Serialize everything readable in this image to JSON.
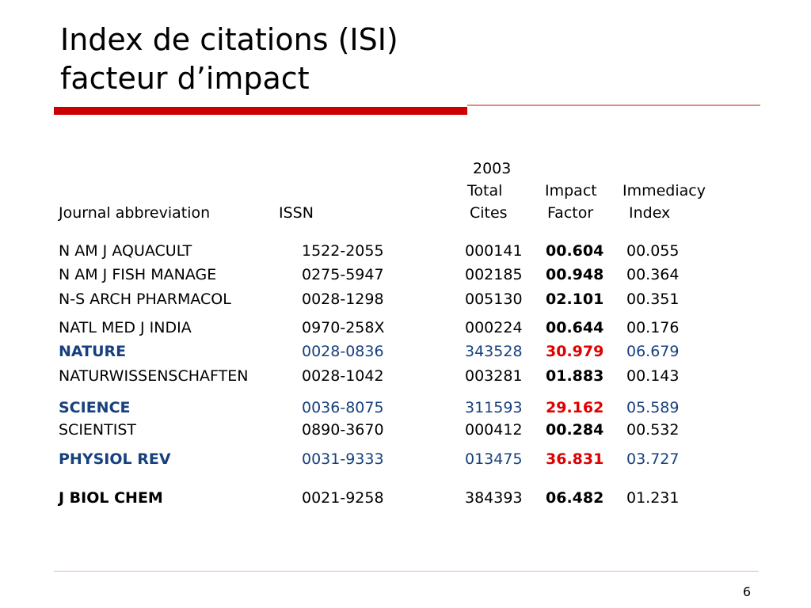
{
  "slide": {
    "title_line1": "Index de citations (ISI)",
    "title_line2": "facteur d’impact",
    "page_number": "6"
  },
  "table": {
    "headers": {
      "year": "2003",
      "total": "Total",
      "impact": "Impact",
      "immediacy": "Immediacy",
      "journal": "Journal abbreviation",
      "issn": "ISSN",
      "cites": "Cites",
      "factor": "Factor",
      "index": "Index"
    },
    "rows": [
      {
        "journal": "N AM J AQUACULT",
        "issn": "1522-2055",
        "total_cites": "000141",
        "impact_factor": "00.604",
        "immediacy_index": "00.055"
      },
      {
        "journal": "N AM J FISH MANAGE",
        "issn": "0275-5947",
        "total_cites": "002185",
        "impact_factor": "00.948",
        "immediacy_index": "00.364"
      },
      {
        "journal": "N-S ARCH PHARMACOL",
        "issn": "0028-1298",
        "total_cites": "005130",
        "impact_factor": "02.101",
        "immediacy_index": "00.351"
      },
      {
        "journal": "NATL MED J INDIA",
        "issn": "0970-258X",
        "total_cites": "000224",
        "impact_factor": "00.644",
        "immediacy_index": "00.176"
      },
      {
        "journal": "NATURE",
        "issn": "0028-0836",
        "total_cites": "343528",
        "impact_factor": "30.979",
        "immediacy_index": "06.679"
      },
      {
        "journal": "NATURWISSENSCHAFTEN",
        "issn": "0028-1042",
        "total_cites": "003281",
        "impact_factor": "01.883",
        "immediacy_index": "00.143"
      },
      {
        "journal": "SCIENCE",
        "issn": "0036-8075",
        "total_cites": "311593",
        "impact_factor": "29.162",
        "immediacy_index": "05.589"
      },
      {
        "journal": "SCIENTIST",
        "issn": "0890-3670",
        "total_cites": "000412",
        "impact_factor": "00.284",
        "immediacy_index": "00.532"
      },
      {
        "journal": "PHYSIOL REV",
        "issn": "0031-9333",
        "total_cites": "013475",
        "impact_factor": "36.831",
        "immediacy_index": "03.727"
      },
      {
        "journal": "J BIOL CHEM",
        "issn": "0021-9258",
        "total_cites": "384393",
        "impact_factor": "06.482",
        "immediacy_index": "01.231"
      }
    ]
  },
  "colors": {
    "accent_red": "#cc0000",
    "highlight_blue": "#17407e",
    "highlight_red": "#e00000"
  }
}
